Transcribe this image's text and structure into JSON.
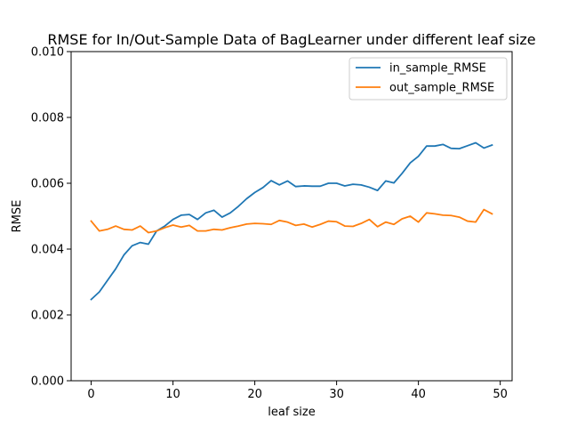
{
  "chart_data": {
    "type": "line",
    "title": "RMSE for In/Out-Sample Data of BagLearner under different leaf size",
    "xlabel": "leaf size",
    "ylabel": "RMSE",
    "xlim": [
      -2.45,
      51.45
    ],
    "ylim": [
      0.0,
      0.01
    ],
    "xticks": [
      0,
      10,
      20,
      30,
      40,
      50
    ],
    "xtick_labels": [
      "0",
      "10",
      "20",
      "30",
      "40",
      "50"
    ],
    "yticks": [
      0.0,
      0.002,
      0.004,
      0.006,
      0.008,
      0.01
    ],
    "ytick_labels": [
      "0.000",
      "0.002",
      "0.004",
      "0.006",
      "0.008",
      "0.010"
    ],
    "legend_position": "top-right",
    "grid": false,
    "x": [
      0,
      1,
      2,
      3,
      4,
      5,
      6,
      7,
      8,
      9,
      10,
      11,
      12,
      13,
      14,
      15,
      16,
      17,
      18,
      19,
      20,
      21,
      22,
      23,
      24,
      25,
      26,
      27,
      28,
      29,
      30,
      31,
      32,
      33,
      34,
      35,
      36,
      37,
      38,
      39,
      40,
      41,
      42,
      43,
      44,
      45,
      46,
      47,
      48,
      49
    ],
    "series": [
      {
        "name": "in_sample_RMSE",
        "color": "#1f77b4",
        "values": [
          0.00247,
          0.0027,
          0.00305,
          0.0034,
          0.00382,
          0.0041,
          0.0042,
          0.00415,
          0.00455,
          0.0047,
          0.0049,
          0.00503,
          0.00505,
          0.0049,
          0.0051,
          0.00518,
          0.00497,
          0.0051,
          0.0053,
          0.00553,
          0.00572,
          0.00587,
          0.00608,
          0.00595,
          0.00607,
          0.0059,
          0.00592,
          0.00591,
          0.00591,
          0.006,
          0.006,
          0.00592,
          0.00597,
          0.00595,
          0.00588,
          0.00578,
          0.00607,
          0.00601,
          0.0063,
          0.00662,
          0.00682,
          0.00713,
          0.00713,
          0.00718,
          0.00706,
          0.00705,
          0.00714,
          0.00723,
          0.00707,
          0.00716
        ]
      },
      {
        "name": "out_sample_RMSE",
        "color": "#ff7f0e",
        "values": [
          0.00485,
          0.00455,
          0.0046,
          0.0047,
          0.0046,
          0.00458,
          0.0047,
          0.0045,
          0.00455,
          0.00465,
          0.00473,
          0.00467,
          0.00472,
          0.00455,
          0.00455,
          0.0046,
          0.00458,
          0.00465,
          0.0047,
          0.00476,
          0.00478,
          0.00477,
          0.00475,
          0.00487,
          0.00482,
          0.00472,
          0.00476,
          0.00467,
          0.00475,
          0.00485,
          0.00483,
          0.0047,
          0.00469,
          0.00478,
          0.0049,
          0.00468,
          0.00482,
          0.00475,
          0.00492,
          0.005,
          0.00482,
          0.0051,
          0.00507,
          0.00503,
          0.00502,
          0.00497,
          0.00485,
          0.00482,
          0.0052,
          0.00507
        ]
      }
    ]
  }
}
